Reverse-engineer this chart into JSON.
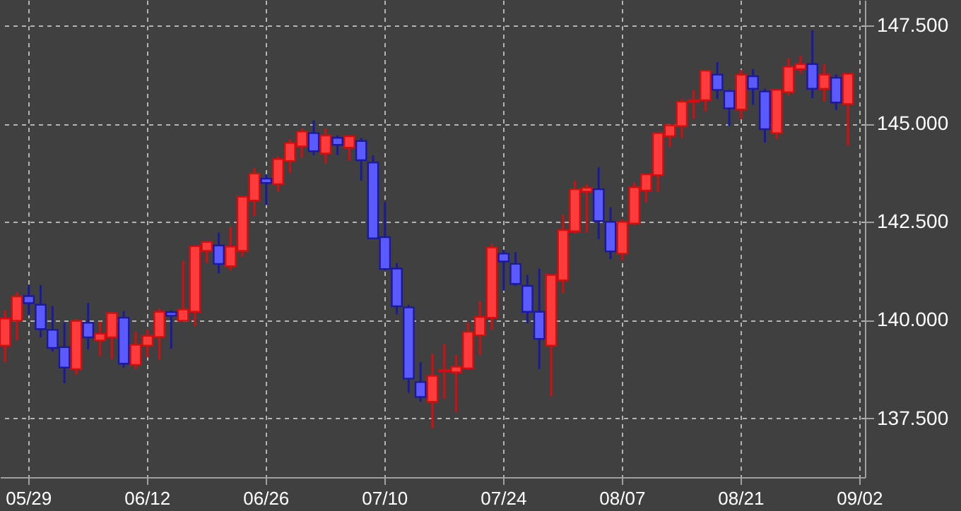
{
  "chart_data": {
    "type": "candlestick",
    "categories": [
      null,
      null,
      "05/29",
      null,
      null,
      null,
      null,
      null,
      null,
      null,
      null,
      null,
      "06/12",
      null,
      null,
      null,
      null,
      null,
      null,
      null,
      null,
      null,
      "06/26",
      null,
      null,
      null,
      null,
      null,
      null,
      null,
      null,
      null,
      "07/10",
      null,
      null,
      null,
      null,
      null,
      null,
      null,
      null,
      null,
      "07/24",
      null,
      null,
      null,
      null,
      null,
      null,
      null,
      null,
      null,
      "08/07",
      null,
      null,
      null,
      null,
      null,
      null,
      null,
      null,
      null,
      "08/21",
      null,
      null,
      null,
      null,
      null,
      null,
      null,
      null,
      null,
      "09/02"
    ],
    "ohlc": [
      [
        139.35,
        140.24,
        138.93,
        140.04
      ],
      [
        139.98,
        140.71,
        139.49,
        140.6
      ],
      [
        140.61,
        140.89,
        140.12,
        140.43
      ],
      [
        140.39,
        140.89,
        139.56,
        139.77
      ],
      [
        139.75,
        140.36,
        139.2,
        139.29
      ],
      [
        139.31,
        139.94,
        138.39,
        138.79
      ],
      [
        138.75,
        140.04,
        138.61,
        139.98
      ],
      [
        139.93,
        140.44,
        139.25,
        139.56
      ],
      [
        139.48,
        139.96,
        139.08,
        139.65
      ],
      [
        139.56,
        140.18,
        139.01,
        140.18
      ],
      [
        140.06,
        140.23,
        138.79,
        138.89
      ],
      [
        138.86,
        139.7,
        138.75,
        139.37
      ],
      [
        139.35,
        139.76,
        139.05,
        139.6
      ],
      [
        139.57,
        140.3,
        138.99,
        140.21
      ],
      [
        140.2,
        140.25,
        139.27,
        140.11
      ],
      [
        139.98,
        141.51,
        139.95,
        140.27
      ],
      [
        140.21,
        141.88,
        139.85,
        141.88
      ],
      [
        141.76,
        141.99,
        141.45,
        141.99
      ],
      [
        141.9,
        142.23,
        141.19,
        141.43
      ],
      [
        141.37,
        142.37,
        141.27,
        141.87
      ],
      [
        141.76,
        143.14,
        141.61,
        143.14
      ],
      [
        143.04,
        143.87,
        142.65,
        143.73
      ],
      [
        143.6,
        143.71,
        142.93,
        143.49
      ],
      [
        143.46,
        144.17,
        143.27,
        144.1
      ],
      [
        144.05,
        144.61,
        143.75,
        144.51
      ],
      [
        144.42,
        144.88,
        144.13,
        144.8
      ],
      [
        144.76,
        145.08,
        144.2,
        144.3
      ],
      [
        144.24,
        144.88,
        143.99,
        144.7
      ],
      [
        144.64,
        144.7,
        144.2,
        144.46
      ],
      [
        144.39,
        144.68,
        144.06,
        144.68
      ],
      [
        144.56,
        144.64,
        143.55,
        144.07
      ],
      [
        144.01,
        144.19,
        142.06,
        142.08
      ],
      [
        142.11,
        143.01,
        141.27,
        141.3
      ],
      [
        141.31,
        141.45,
        140.14,
        140.35
      ],
      [
        140.32,
        140.39,
        138.15,
        138.51
      ],
      [
        138.42,
        138.93,
        137.92,
        138.04
      ],
      [
        137.92,
        139.14,
        137.24,
        138.58
      ],
      [
        138.7,
        139.38,
        138.0,
        138.73
      ],
      [
        138.67,
        139.11,
        137.65,
        138.81
      ],
      [
        138.77,
        139.94,
        138.74,
        139.7
      ],
      [
        139.61,
        140.48,
        139.11,
        140.08
      ],
      [
        140.06,
        141.94,
        139.76,
        141.85
      ],
      [
        141.69,
        141.79,
        140.75,
        141.49
      ],
      [
        141.43,
        141.73,
        140.87,
        140.92
      ],
      [
        140.87,
        141.15,
        139.92,
        140.21
      ],
      [
        140.21,
        141.31,
        138.75,
        139.52
      ],
      [
        139.35,
        141.15,
        138.06,
        141.15
      ],
      [
        141.01,
        142.68,
        140.68,
        142.29
      ],
      [
        142.26,
        143.54,
        142.2,
        143.33
      ],
      [
        143.27,
        143.45,
        142.24,
        143.37
      ],
      [
        143.33,
        143.89,
        142.06,
        142.52
      ],
      [
        142.5,
        142.87,
        141.55,
        141.75
      ],
      [
        141.69,
        142.56,
        141.52,
        142.5
      ],
      [
        142.46,
        143.5,
        142.42,
        143.38
      ],
      [
        143.3,
        143.71,
        143.0,
        143.71
      ],
      [
        143.69,
        144.76,
        143.27,
        144.76
      ],
      [
        144.68,
        144.96,
        144.4,
        144.96
      ],
      [
        144.94,
        145.63,
        144.64,
        145.56
      ],
      [
        145.56,
        145.86,
        145.12,
        145.6
      ],
      [
        145.6,
        146.35,
        145.32,
        146.35
      ],
      [
        146.25,
        146.57,
        145.63,
        145.86
      ],
      [
        145.83,
        145.86,
        144.94,
        145.39
      ],
      [
        145.36,
        146.37,
        145.12,
        146.25
      ],
      [
        146.21,
        146.39,
        145.48,
        145.89
      ],
      [
        145.82,
        145.89,
        144.52,
        144.86
      ],
      [
        144.76,
        145.89,
        144.61,
        145.86
      ],
      [
        145.8,
        146.67,
        145.71,
        146.45
      ],
      [
        146.39,
        146.73,
        146.27,
        146.52
      ],
      [
        146.52,
        147.38,
        145.65,
        145.89
      ],
      [
        145.89,
        146.52,
        145.56,
        146.25
      ],
      [
        146.17,
        146.25,
        145.35,
        145.54
      ],
      [
        145.5,
        146.27,
        144.44,
        146.27
      ],
      null
    ],
    "ylim": [
      136.0,
      148.15
    ],
    "yticks": [
      {
        "value": 137.5,
        "label": "137.500"
      },
      {
        "value": 140,
        "label": "140.000"
      },
      {
        "value": 142.5,
        "label": "142.500"
      },
      {
        "value": 145,
        "label": "145.000"
      },
      {
        "value": 147.5,
        "label": "147.500"
      }
    ],
    "grid": true
  }
}
